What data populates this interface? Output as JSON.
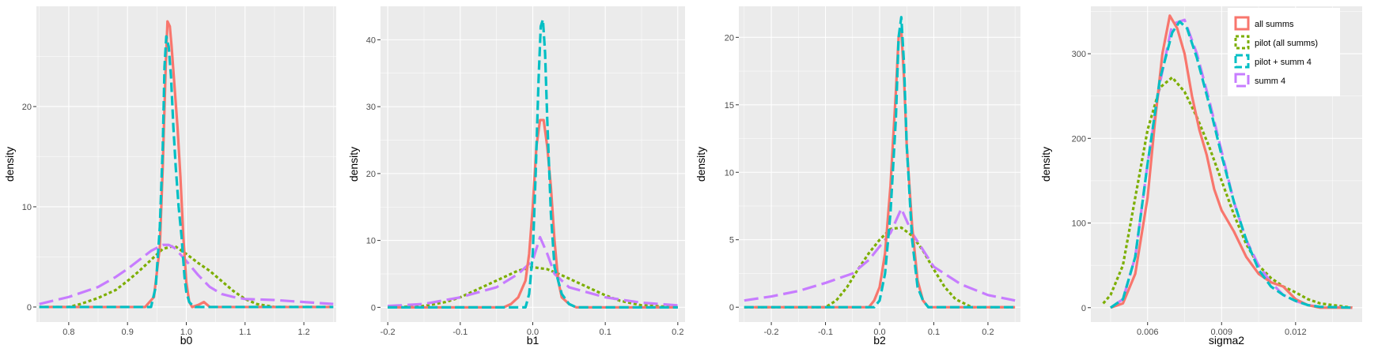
{
  "colors": {
    "all summs": "#F8766D",
    "pilot (all summs)": "#7CAE00",
    "pilot + summ 4": "#00BFC4",
    "summ 4": "#C77CFF",
    "panel_bg": "#EBEBEB",
    "grid": "#FFFFFF"
  },
  "legend": {
    "position": "top-right inside last panel",
    "entries": [
      {
        "label": "all summs",
        "dash": "solid"
      },
      {
        "label": "pilot (all summs)",
        "dash": "dotted"
      },
      {
        "label": "pilot + summ 4",
        "dash": "dashed"
      },
      {
        "label": "summ 4",
        "dash": "longdash"
      }
    ]
  },
  "chart_data": [
    {
      "type": "line",
      "xlabel": "b0",
      "ylabel": "density",
      "xlim": [
        0.745,
        1.255
      ],
      "ylim": [
        -1.5,
        30
      ],
      "xticks": [
        0.8,
        0.9,
        1.0,
        1.1,
        1.2
      ],
      "xtick_labels": [
        "0.8",
        "0.9",
        "1.0",
        "1.1",
        "1.2"
      ],
      "yticks": [
        0,
        10,
        20
      ],
      "ytick_labels": [
        "0",
        "10",
        "20"
      ],
      "grid": true,
      "series": [
        {
          "name": "all summs",
          "x": [
            0.75,
            0.93,
            0.945,
            0.955,
            0.96,
            0.965,
            0.968,
            0.972,
            0.975,
            0.98,
            0.985,
            0.99,
            0.995,
            1.0,
            1.005,
            1.01,
            1.02,
            1.03,
            1.04,
            1.25
          ],
          "y": [
            0,
            0,
            1,
            6,
            14,
            24,
            28.5,
            28,
            26,
            22,
            18,
            13,
            7,
            2.5,
            0.5,
            0,
            0.2,
            0.5,
            0,
            0
          ]
        },
        {
          "name": "pilot (all summs)",
          "x": [
            0.75,
            0.8,
            0.82,
            0.85,
            0.88,
            0.9,
            0.92,
            0.94,
            0.96,
            0.98,
            1.0,
            1.02,
            1.04,
            1.06,
            1.08,
            1.1,
            1.12,
            1.15,
            1.25
          ],
          "y": [
            0,
            0,
            0.3,
            0.9,
            1.7,
            2.6,
            3.6,
            4.7,
            5.8,
            6.1,
            5.3,
            4.4,
            3.6,
            2.6,
            1.6,
            0.8,
            0.3,
            0,
            0
          ]
        },
        {
          "name": "pilot + summ 4",
          "x": [
            0.75,
            0.94,
            0.948,
            0.955,
            0.96,
            0.963,
            0.966,
            0.97,
            0.974,
            0.978,
            0.982,
            0.987,
            0.992,
            0.997,
            1.0,
            1.005,
            1.01,
            1.015,
            1.25
          ],
          "y": [
            0,
            0,
            2,
            8,
            16,
            24,
            27,
            26,
            23,
            18,
            14,
            10,
            7,
            3,
            1.5,
            0.5,
            0.2,
            0,
            0
          ]
        },
        {
          "name": "summ 4",
          "x": [
            0.75,
            0.8,
            0.85,
            0.88,
            0.9,
            0.92,
            0.94,
            0.96,
            0.97,
            0.98,
            1.0,
            1.02,
            1.04,
            1.06,
            1.08,
            1.1,
            1.15,
            1.2,
            1.25
          ],
          "y": [
            0.3,
            1.0,
            2.0,
            3.0,
            3.8,
            4.7,
            5.6,
            6.2,
            6.2,
            5.9,
            4.6,
            3.2,
            2.0,
            1.3,
            1.0,
            0.8,
            0.7,
            0.5,
            0.3
          ]
        }
      ]
    },
    {
      "type": "line",
      "xlabel": "b1",
      "ylabel": "density",
      "xlim": [
        -0.21,
        0.21
      ],
      "ylim": [
        -2.2,
        45
      ],
      "xticks": [
        -0.2,
        -0.1,
        0.0,
        0.1,
        0.2
      ],
      "xtick_labels": [
        "-0.2",
        "-0.1",
        "0.0",
        "0.1",
        "0.2"
      ],
      "yticks": [
        0,
        10,
        20,
        30,
        40
      ],
      "ytick_labels": [
        "0",
        "10",
        "20",
        "30",
        "40"
      ],
      "grid": true,
      "series": [
        {
          "name": "all summs",
          "x": [
            -0.2,
            -0.04,
            -0.03,
            -0.02,
            -0.01,
            -0.005,
            0.0,
            0.005,
            0.01,
            0.015,
            0.02,
            0.025,
            0.03,
            0.035,
            0.04,
            0.05,
            0.06,
            0.2
          ],
          "y": [
            0,
            0,
            0.5,
            1.5,
            4,
            8,
            15,
            24,
            28,
            28,
            24,
            18,
            10,
            4,
            1.5,
            0.5,
            0,
            0
          ]
        },
        {
          "name": "pilot (all summs)",
          "x": [
            -0.2,
            -0.15,
            -0.12,
            -0.1,
            -0.08,
            -0.06,
            -0.04,
            -0.02,
            0.0,
            0.02,
            0.04,
            0.06,
            0.08,
            0.1,
            0.12,
            0.15,
            0.2
          ],
          "y": [
            0,
            0.2,
            0.8,
            1.5,
            2.5,
            3.5,
            4.5,
            5.5,
            6.0,
            5.7,
            4.8,
            3.8,
            2.8,
            1.8,
            1.0,
            0.3,
            0
          ]
        },
        {
          "name": "pilot + summ 4",
          "x": [
            -0.2,
            -0.01,
            -0.005,
            0.0,
            0.004,
            0.008,
            0.011,
            0.014,
            0.017,
            0.02,
            0.025,
            0.03,
            0.04,
            0.05,
            0.06,
            0.2
          ],
          "y": [
            0,
            0,
            2,
            8,
            20,
            34,
            42,
            43,
            38,
            28,
            14,
            6,
            2,
            0.5,
            0,
            0
          ]
        },
        {
          "name": "summ 4",
          "x": [
            -0.2,
            -0.15,
            -0.1,
            -0.05,
            -0.02,
            0.0,
            0.01,
            0.02,
            0.03,
            0.05,
            0.1,
            0.15,
            0.2
          ],
          "y": [
            0.2,
            0.5,
            1.5,
            3,
            5,
            7,
            10.5,
            8,
            5,
            3,
            1.5,
            0.7,
            0.3
          ]
        }
      ]
    },
    {
      "type": "line",
      "xlabel": "b2",
      "ylabel": "density",
      "xlim": [
        -0.26,
        0.26
      ],
      "ylim": [
        -1.1,
        22.3
      ],
      "xticks": [
        -0.2,
        -0.1,
        0.0,
        0.1,
        0.2
      ],
      "xtick_labels": [
        "-0.2",
        "-0.1",
        "0.0",
        "0.1",
        "0.2"
      ],
      "yticks": [
        0,
        5,
        10,
        15,
        20
      ],
      "ytick_labels": [
        "0",
        "5",
        "10",
        "15",
        "20"
      ],
      "grid": true,
      "series": [
        {
          "name": "all summs",
          "x": [
            -0.25,
            -0.02,
            -0.01,
            0.0,
            0.01,
            0.02,
            0.03,
            0.035,
            0.04,
            0.045,
            0.05,
            0.06,
            0.07,
            0.08,
            0.09,
            0.25
          ],
          "y": [
            0,
            0,
            0.5,
            1.5,
            4,
            9,
            16,
            20,
            20.5,
            17,
            12,
            6,
            2,
            0.5,
            0,
            0
          ]
        },
        {
          "name": "pilot (all summs)",
          "x": [
            -0.25,
            -0.1,
            -0.08,
            -0.06,
            -0.04,
            -0.02,
            0.0,
            0.02,
            0.04,
            0.06,
            0.08,
            0.1,
            0.12,
            0.14,
            0.17,
            0.25
          ],
          "y": [
            0,
            0,
            0.5,
            1.5,
            2.8,
            4.0,
            5.0,
            5.8,
            5.9,
            5.3,
            4.2,
            2.8,
            1.5,
            0.6,
            0,
            0
          ]
        },
        {
          "name": "pilot + summ 4",
          "x": [
            -0.25,
            -0.01,
            0.0,
            0.01,
            0.02,
            0.03,
            0.035,
            0.04,
            0.045,
            0.05,
            0.06,
            0.07,
            0.08,
            0.09,
            0.25
          ],
          "y": [
            0,
            0,
            0.5,
            2.5,
            7,
            14,
            20,
            21.5,
            18,
            12,
            5,
            1.5,
            0.5,
            0,
            0
          ]
        },
        {
          "name": "summ 4",
          "x": [
            -0.25,
            -0.2,
            -0.15,
            -0.1,
            -0.05,
            -0.02,
            0.0,
            0.02,
            0.04,
            0.06,
            0.1,
            0.15,
            0.2,
            0.25
          ],
          "y": [
            0.5,
            0.8,
            1.2,
            1.8,
            2.5,
            3.5,
            4.5,
            5.5,
            7.3,
            5.5,
            3,
            1.7,
            0.9,
            0.5
          ]
        }
      ]
    },
    {
      "type": "line",
      "xlabel": "sigma2",
      "ylabel": "density",
      "xlim": [
        0.0037,
        0.0147
      ],
      "ylim": [
        -17,
        356
      ],
      "xticks": [
        0.006,
        0.009,
        0.012
      ],
      "xtick_labels": [
        "0.006",
        "0.009",
        "0.012"
      ],
      "yticks": [
        0,
        100,
        200,
        300
      ],
      "ytick_labels": [
        "0",
        "100",
        "200",
        "300"
      ],
      "grid": true,
      "series": [
        {
          "name": "all summs",
          "x": [
            0.0045,
            0.005,
            0.0055,
            0.006,
            0.0063,
            0.0066,
            0.0069,
            0.0072,
            0.0075,
            0.0078,
            0.0081,
            0.0084,
            0.0087,
            0.009,
            0.0095,
            0.01,
            0.0105,
            0.011,
            0.0115,
            0.012,
            0.0125,
            0.013,
            0.0143
          ],
          "y": [
            0,
            5,
            40,
            130,
            220,
            300,
            345,
            330,
            300,
            250,
            210,
            180,
            140,
            115,
            90,
            60,
            40,
            30,
            25,
            10,
            3,
            0,
            0
          ]
        },
        {
          "name": "pilot (all summs)",
          "x": [
            0.0042,
            0.0045,
            0.005,
            0.0055,
            0.006,
            0.0065,
            0.007,
            0.0075,
            0.008,
            0.0085,
            0.009,
            0.0095,
            0.01,
            0.0105,
            0.011,
            0.0115,
            0.012,
            0.0125,
            0.013,
            0.0143
          ],
          "y": [
            5,
            15,
            50,
            130,
            210,
            260,
            272,
            255,
            225,
            190,
            150,
            110,
            75,
            50,
            35,
            25,
            18,
            10,
            5,
            0
          ]
        },
        {
          "name": "pilot + summ 4",
          "x": [
            0.0045,
            0.005,
            0.0055,
            0.006,
            0.0065,
            0.007,
            0.0073,
            0.0076,
            0.008,
            0.0085,
            0.009,
            0.0095,
            0.01,
            0.0105,
            0.011,
            0.0115,
            0.012,
            0.0125,
            0.013,
            0.0143
          ],
          "y": [
            0,
            10,
            60,
            170,
            270,
            325,
            338,
            330,
            295,
            240,
            180,
            125,
            80,
            45,
            25,
            15,
            8,
            3,
            1,
            0
          ]
        },
        {
          "name": "summ 4",
          "x": [
            0.0045,
            0.005,
            0.0055,
            0.006,
            0.0065,
            0.007,
            0.0075,
            0.008,
            0.0085,
            0.009,
            0.0095,
            0.01,
            0.0105,
            0.011,
            0.0115,
            0.012,
            0.0125,
            0.013,
            0.0143
          ],
          "y": [
            0,
            10,
            60,
            170,
            265,
            335,
            340,
            300,
            245,
            185,
            125,
            80,
            50,
            30,
            15,
            8,
            3,
            1,
            0
          ]
        }
      ]
    }
  ]
}
